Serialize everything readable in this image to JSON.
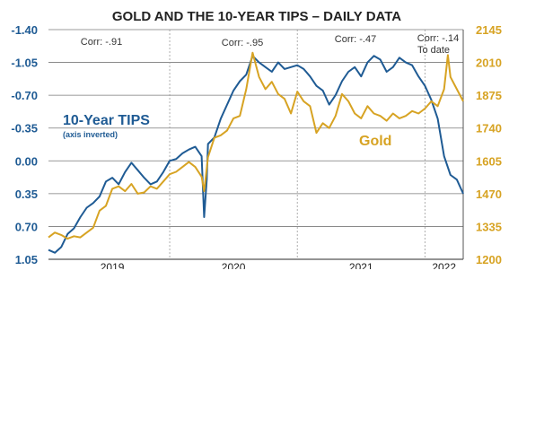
{
  "chart_data": {
    "type": "line",
    "title": "GOLD AND THE 10-YEAR TIPS – DAILY DATA",
    "x_labels": [
      "2019",
      "2020",
      "2021",
      "2022"
    ],
    "x_range": [
      2018.95,
      2022.2
    ],
    "year_dividers": [
      2019.9,
      2020.9,
      2021.9
    ],
    "y_left": {
      "ticks": [
        "-1.40",
        "-1.05",
        "-0.70",
        "-0.35",
        "0.00",
        "0.35",
        "0.70",
        "1.05"
      ],
      "range": [
        -1.4,
        1.05
      ],
      "inverted": true
    },
    "y_right": {
      "ticks": [
        "2145",
        "2010",
        "1875",
        "1740",
        "1605",
        "1470",
        "1335",
        "1200"
      ],
      "range": [
        1200,
        2145
      ]
    },
    "grid": "horizontal",
    "annotations": [
      "Corr: -.91",
      "Corr: -.95",
      "Corr: -.47",
      "Corr: -.14",
      "To date"
    ],
    "colors": {
      "tips": "#1f5b94",
      "gold": "#d7a323",
      "title": "#222222"
    },
    "series": [
      {
        "name": "10-Year TIPS",
        "sublabel": "(axis inverted)",
        "axis": "left",
        "x": [
          2018.95,
          2019.0,
          2019.05,
          2019.1,
          2019.15,
          2019.2,
          2019.25,
          2019.3,
          2019.35,
          2019.4,
          2019.45,
          2019.5,
          2019.55,
          2019.6,
          2019.65,
          2019.7,
          2019.75,
          2019.8,
          2019.85,
          2019.9,
          2019.95,
          2020.0,
          2020.05,
          2020.1,
          2020.15,
          2020.17,
          2020.19,
          2020.2,
          2020.25,
          2020.3,
          2020.35,
          2020.4,
          2020.45,
          2020.5,
          2020.55,
          2020.6,
          2020.65,
          2020.7,
          2020.75,
          2020.8,
          2020.85,
          2020.9,
          2020.95,
          2021.0,
          2021.05,
          2021.1,
          2021.15,
          2021.2,
          2021.25,
          2021.3,
          2021.35,
          2021.4,
          2021.45,
          2021.5,
          2021.55,
          2021.6,
          2021.65,
          2021.7,
          2021.75,
          2021.8,
          2021.85,
          2021.9,
          2021.95,
          2022.0,
          2022.05,
          2022.1,
          2022.15,
          2022.2
        ],
        "values": [
          0.95,
          0.98,
          0.92,
          0.78,
          0.72,
          0.6,
          0.5,
          0.45,
          0.38,
          0.22,
          0.18,
          0.25,
          0.12,
          0.02,
          0.1,
          0.18,
          0.25,
          0.22,
          0.12,
          0.0,
          -0.02,
          -0.08,
          -0.12,
          -0.15,
          -0.05,
          0.6,
          0.2,
          -0.18,
          -0.25,
          -0.45,
          -0.6,
          -0.75,
          -0.85,
          -0.92,
          -1.12,
          -1.05,
          -1.0,
          -0.95,
          -1.05,
          -0.98,
          -1.0,
          -1.02,
          -0.98,
          -0.9,
          -0.8,
          -0.75,
          -0.6,
          -0.7,
          -0.85,
          -0.95,
          -1.0,
          -0.9,
          -1.05,
          -1.12,
          -1.08,
          -0.95,
          -1.0,
          -1.1,
          -1.05,
          -1.02,
          -0.9,
          -0.8,
          -0.65,
          -0.45,
          -0.05,
          0.15,
          0.2,
          0.35
        ]
      },
      {
        "name": "Gold",
        "axis": "right",
        "x": [
          2018.95,
          2019.0,
          2019.05,
          2019.1,
          2019.15,
          2019.2,
          2019.25,
          2019.3,
          2019.35,
          2019.4,
          2019.45,
          2019.5,
          2019.55,
          2019.6,
          2019.65,
          2019.7,
          2019.75,
          2019.8,
          2019.85,
          2019.9,
          2019.95,
          2020.0,
          2020.05,
          2020.1,
          2020.15,
          2020.17,
          2020.2,
          2020.25,
          2020.3,
          2020.35,
          2020.4,
          2020.45,
          2020.5,
          2020.55,
          2020.6,
          2020.65,
          2020.7,
          2020.75,
          2020.8,
          2020.85,
          2020.9,
          2020.95,
          2021.0,
          2021.05,
          2021.1,
          2021.15,
          2021.2,
          2021.25,
          2021.3,
          2021.35,
          2021.4,
          2021.45,
          2021.5,
          2021.55,
          2021.6,
          2021.65,
          2021.7,
          2021.75,
          2021.8,
          2021.85,
          2021.9,
          2021.95,
          2022.0,
          2022.05,
          2022.08,
          2022.1,
          2022.15,
          2022.2
        ],
        "values": [
          1290,
          1310,
          1300,
          1285,
          1295,
          1290,
          1310,
          1330,
          1400,
          1420,
          1490,
          1500,
          1480,
          1510,
          1470,
          1475,
          1500,
          1490,
          1520,
          1550,
          1560,
          1580,
          1600,
          1580,
          1540,
          1480,
          1620,
          1700,
          1710,
          1730,
          1780,
          1790,
          1900,
          2050,
          1950,
          1900,
          1930,
          1880,
          1860,
          1800,
          1890,
          1850,
          1830,
          1720,
          1760,
          1740,
          1790,
          1880,
          1850,
          1800,
          1780,
          1830,
          1800,
          1790,
          1770,
          1800,
          1780,
          1790,
          1810,
          1800,
          1820,
          1850,
          1830,
          1900,
          2040,
          1950,
          1900,
          1850
        ]
      }
    ]
  }
}
